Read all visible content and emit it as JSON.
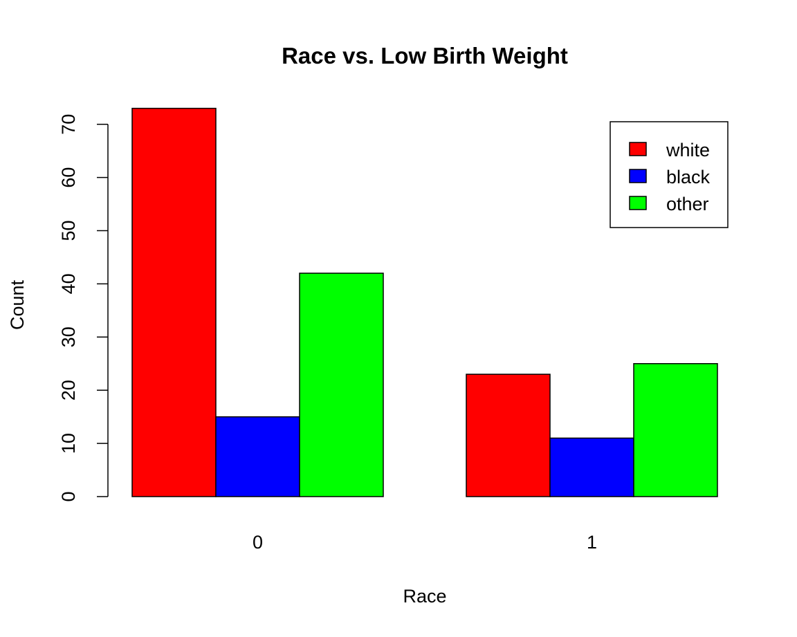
{
  "chart_data": {
    "type": "bar",
    "title": "Race vs. Low Birth Weight",
    "xlabel": "Race",
    "ylabel": "Count",
    "categories": [
      "0",
      "1"
    ],
    "series": [
      {
        "name": "white",
        "color": "#ff0000",
        "values": [
          73,
          23
        ]
      },
      {
        "name": "black",
        "color": "#0000ff",
        "values": [
          15,
          11
        ]
      },
      {
        "name": "other",
        "color": "#00ff00",
        "values": [
          42,
          25
        ]
      }
    ],
    "ylim": [
      0,
      73
    ],
    "yticks": [
      0,
      10,
      20,
      30,
      40,
      50,
      60,
      70
    ],
    "legend_position": "top-right",
    "grid": false
  }
}
